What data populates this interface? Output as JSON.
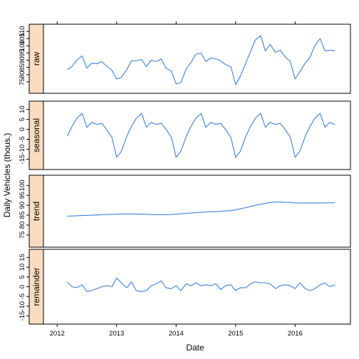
{
  "chart_data": {
    "type": "line",
    "title": "",
    "xlabel": "Date",
    "ylabel": "Daily Vehicles (thous.)",
    "xlim": [
      2011.77,
      2016.93
    ],
    "x_ticks": [
      2012,
      2013,
      2014,
      2015,
      2016
    ],
    "x_tick_labels": [
      "2012",
      "2013",
      "2014",
      "2015",
      "2016"
    ],
    "line_color": "#3f7fd9",
    "strip_color": "#f9dcc0",
    "x": [
      2012.17,
      2012.25,
      2012.33,
      2012.42,
      2012.5,
      2012.58,
      2012.67,
      2012.75,
      2012.83,
      2012.92,
      2013.0,
      2013.08,
      2013.17,
      2013.25,
      2013.33,
      2013.42,
      2013.5,
      2013.58,
      2013.67,
      2013.75,
      2013.83,
      2013.92,
      2014.0,
      2014.08,
      2014.17,
      2014.25,
      2014.33,
      2014.42,
      2014.5,
      2014.58,
      2014.67,
      2014.75,
      2014.83,
      2014.92,
      2015.0,
      2015.08,
      2015.17,
      2015.25,
      2015.33,
      2015.42,
      2015.5,
      2015.58,
      2015.67,
      2015.75,
      2015.83,
      2015.92,
      2016.0,
      2016.08,
      2016.17,
      2016.25,
      2016.33,
      2016.42,
      2016.5,
      2016.58,
      2016.67
    ],
    "panels": [
      {
        "name": "raw",
        "ylim": [
          70.0,
          112.0
        ],
        "yticks": [
          75,
          80,
          85,
          90,
          95,
          100,
          105,
          110
        ],
        "yticklabels": [
          "75",
          "80",
          "85",
          "90",
          "95",
          "100",
          "105",
          "110"
        ],
        "values": [
          83.5,
          85.5,
          90.0,
          93.0,
          84.5,
          88.0,
          87.5,
          89.0,
          86.0,
          83.0,
          77.0,
          78.0,
          83.5,
          89.5,
          89.5,
          90.5,
          85.5,
          90.0,
          89.0,
          91.0,
          84.5,
          82.5,
          73.5,
          74.5,
          84.0,
          88.5,
          94.0,
          95.0,
          89.0,
          91.5,
          91.0,
          89.5,
          87.0,
          85.5,
          73.0,
          79.0,
          88.0,
          96.0,
          104.0,
          107.0,
          96.5,
          101.0,
          95.5,
          97.0,
          92.5,
          89.0,
          77.0,
          82.0,
          88.0,
          92.0,
          100.0,
          105.0,
          96.5,
          97.0,
          96.5
        ]
      },
      {
        "name": "seasonal",
        "ylim": [
          -18.0,
          12.0
        ],
        "yticks": [
          -15,
          -10,
          -5,
          0,
          5,
          10
        ],
        "yticklabels": [
          "-15",
          "-10",
          "-5",
          "0",
          "5",
          "10"
        ],
        "values": [
          -3.5,
          1.5,
          5.5,
          8.0,
          1.0,
          3.5,
          2.5,
          3.0,
          0.0,
          -4.0,
          -14.0,
          -11.0,
          -3.5,
          1.5,
          5.5,
          8.0,
          1.0,
          3.5,
          2.5,
          3.0,
          0.0,
          -4.0,
          -14.0,
          -11.0,
          -3.5,
          1.5,
          5.5,
          8.0,
          1.0,
          3.5,
          2.5,
          3.0,
          0.0,
          -4.0,
          -14.0,
          -11.0,
          -3.5,
          1.5,
          5.5,
          8.0,
          1.0,
          3.5,
          2.5,
          3.0,
          0.0,
          -4.0,
          -14.0,
          -11.0,
          -3.5,
          1.5,
          5.5,
          8.0,
          1.0,
          3.5,
          2.5
        ]
      },
      {
        "name": "trend",
        "ylim": [
          71.0,
          103.0
        ],
        "yticks": [
          75,
          80,
          85,
          90,
          95,
          100
        ],
        "yticklabels": [
          "75",
          "80",
          "85",
          "90",
          "95",
          "100"
        ],
        "values": [
          84.5,
          84.6,
          84.7,
          84.8,
          84.9,
          85.0,
          85.1,
          85.2,
          85.3,
          85.4,
          85.5,
          85.6,
          85.6,
          85.6,
          85.6,
          85.5,
          85.4,
          85.3,
          85.2,
          85.2,
          85.2,
          85.3,
          85.5,
          85.7,
          85.9,
          86.1,
          86.3,
          86.4,
          86.6,
          86.7,
          86.8,
          86.9,
          87.1,
          87.3,
          87.7,
          88.2,
          88.8,
          89.4,
          90.0,
          90.5,
          91.0,
          91.4,
          91.6,
          91.6,
          91.5,
          91.4,
          91.2,
          91.1,
          91.1,
          91.1,
          91.1,
          91.1,
          91.2,
          91.2,
          91.3
        ]
      },
      {
        "name": "remainder",
        "ylim": [
          -17.0,
          17.0
        ],
        "yticks": [
          -15,
          -10,
          -5,
          0,
          5,
          10,
          15
        ],
        "yticklabels": [
          "-15",
          "-10",
          "-5",
          "0",
          "5",
          "10",
          "15"
        ],
        "values": [
          2.5,
          0.0,
          -0.5,
          1.0,
          -2.5,
          -2.0,
          -1.0,
          0.0,
          0.5,
          0.0,
          4.5,
          2.0,
          -0.5,
          2.5,
          -2.0,
          -2.5,
          -2.0,
          0.5,
          1.5,
          3.0,
          -0.5,
          -1.0,
          0.5,
          -2.0,
          1.5,
          0.5,
          2.0,
          0.5,
          1.0,
          0.5,
          1.5,
          -1.5,
          0.5,
          1.0,
          -2.0,
          -0.5,
          -0.5,
          1.5,
          2.5,
          2.0,
          2.0,
          1.5,
          -1.0,
          0.5,
          1.0,
          0.5,
          -1.0,
          2.0,
          -1.0,
          -2.0,
          -1.0,
          1.0,
          2.0,
          0.0,
          1.0
        ]
      }
    ]
  }
}
